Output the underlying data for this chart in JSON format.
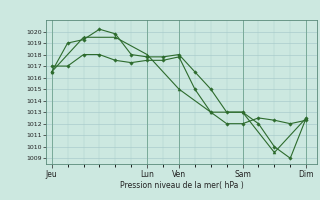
{
  "bg_color": "#cce8e0",
  "grid_color": "#aacccc",
  "line_color": "#2d6b2d",
  "marker_color": "#2d6b2d",
  "xlabel": "Pression niveau de la mer( hPa )",
  "ylim": [
    1008.5,
    1021.0
  ],
  "yticks": [
    1009,
    1010,
    1011,
    1012,
    1013,
    1014,
    1015,
    1016,
    1017,
    1018,
    1019,
    1020
  ],
  "day_labels": [
    "Jeu",
    "Lun",
    "Ven",
    "Sam",
    "Dim"
  ],
  "day_positions": [
    0,
    18,
    24,
    36,
    48
  ],
  "xlim": [
    -1,
    50
  ],
  "series1": {
    "x": [
      0,
      3,
      6,
      9,
      12,
      15,
      18,
      21,
      24,
      27,
      30,
      33,
      36,
      39,
      42,
      45,
      48
    ],
    "y": [
      1016.5,
      1019.0,
      1019.3,
      1020.2,
      1019.8,
      1018.0,
      1017.8,
      1017.8,
      1018.0,
      1016.5,
      1015.0,
      1013.0,
      1013.0,
      1012.0,
      1010.0,
      1009.0,
      1012.5
    ]
  },
  "series2": {
    "x": [
      0,
      3,
      6,
      9,
      12,
      15,
      18,
      21,
      24,
      27,
      30,
      33,
      36,
      39,
      42,
      45,
      48
    ],
    "y": [
      1017.0,
      1017.0,
      1018.0,
      1018.0,
      1017.5,
      1017.3,
      1017.5,
      1017.5,
      1017.8,
      1015.0,
      1013.0,
      1012.0,
      1012.0,
      1012.5,
      1012.3,
      1012.0,
      1012.3
    ]
  },
  "series3": {
    "x": [
      0,
      6,
      12,
      18,
      24,
      30,
      36,
      42,
      48
    ],
    "y": [
      1016.5,
      1019.5,
      1019.5,
      1018.0,
      1015.0,
      1013.0,
      1013.0,
      1009.5,
      1012.5
    ]
  }
}
